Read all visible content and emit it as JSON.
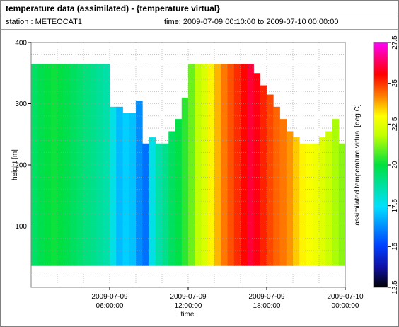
{
  "header": {
    "title": "temperature data (assimilated) - {temperature virtual}",
    "station": "station : METEOCAT1",
    "timerange": "time: 2009-07-09 00:10:00 to 2009-07-10 00:00:00"
  },
  "chart_data": {
    "type": "heatmap",
    "xlabel": "time",
    "ylabel": "height [m]",
    "colorbar_label": "assimilated temperature virtual [deg C]",
    "xlim": [
      "2009-07-09 00:00",
      "2009-07-10 00:00"
    ],
    "ylim": [
      0,
      400
    ],
    "clim": [
      12.5,
      27.5
    ],
    "grid": true,
    "x_ticks": [
      {
        "line1": "2009-07-09",
        "line2": "06:00:00",
        "hour": 6
      },
      {
        "line1": "2009-07-09",
        "line2": "12:00:00",
        "hour": 12
      },
      {
        "line1": "2009-07-09",
        "line2": "18:00:00",
        "hour": 18
      },
      {
        "line1": "2009-07-10",
        "line2": "00:00:00",
        "hour": 24
      }
    ],
    "y_ticks": [
      100,
      200,
      300,
      400
    ],
    "colorbar_ticks": [
      12.5,
      15,
      17.5,
      20,
      22.5,
      25,
      27.5
    ],
    "bottom_height": 35,
    "hours": [
      0,
      0.5,
      1,
      1.5,
      2,
      2.5,
      3,
      3.5,
      4,
      4.5,
      5,
      5.5,
      6,
      6.5,
      7,
      7.5,
      8,
      8.5,
      9,
      9.5,
      10,
      10.5,
      11,
      11.5,
      12,
      12.5,
      13,
      13.5,
      14,
      14.5,
      15,
      15.5,
      16,
      16.5,
      17,
      17.5,
      18,
      18.5,
      19,
      19.5,
      20,
      20.5,
      21,
      21.5,
      22,
      22.5,
      23,
      23.5
    ],
    "top_height": [
      365,
      365,
      365,
      365,
      365,
      365,
      365,
      365,
      365,
      365,
      365,
      365,
      295,
      295,
      285,
      285,
      305,
      235,
      245,
      235,
      235,
      255,
      275,
      310,
      365,
      365,
      365,
      365,
      365,
      365,
      365,
      365,
      365,
      365,
      350,
      330,
      315,
      295,
      275,
      255,
      245,
      235,
      235,
      235,
      245,
      255,
      275,
      235
    ],
    "temperature": [
      19.5,
      19.8,
      20.0,
      20.1,
      20.0,
      19.8,
      19.6,
      19.4,
      19.2,
      19.0,
      18.8,
      18.6,
      17.8,
      16.9,
      17.2,
      17.0,
      16.2,
      15.8,
      17.8,
      18.6,
      19.0,
      19.6,
      19.9,
      20.4,
      21.0,
      21.8,
      22.3,
      23.1,
      23.7,
      24.3,
      24.7,
      25.1,
      25.5,
      26.0,
      25.7,
      25.2,
      24.8,
      24.5,
      24.3,
      24.0,
      23.5,
      23.1,
      22.9,
      22.7,
      22.4,
      22.0,
      21.6,
      21.3
    ]
  }
}
